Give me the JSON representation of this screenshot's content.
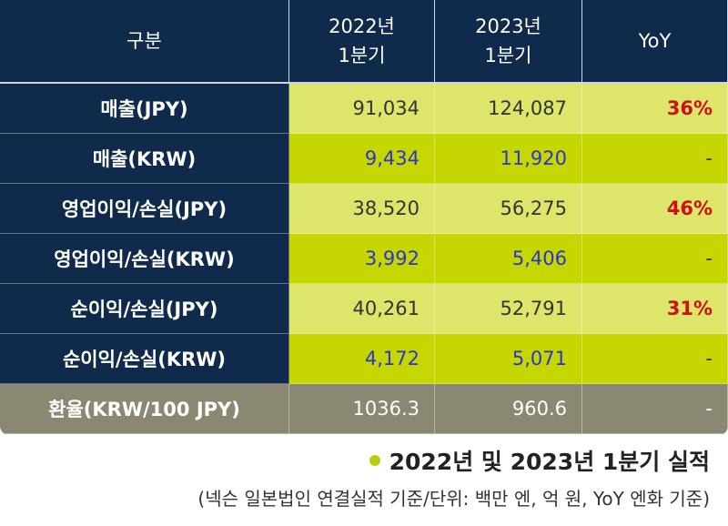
{
  "table": {
    "headers": [
      "구분",
      "2022년\n1분기",
      "2023년\n1분기",
      "YoY"
    ],
    "rows": [
      {
        "label": "매출(JPY)",
        "y2022": "91,034",
        "y2023": "124,087",
        "yoy": "36%"
      },
      {
        "label": "매출(KRW)",
        "y2022": "9,434",
        "y2023": "11,920",
        "yoy": "-"
      },
      {
        "label": "영업이익/손실(JPY)",
        "y2022": "38,520",
        "y2023": "56,275",
        "yoy": "46%"
      },
      {
        "label": "영업이익/손실(KRW)",
        "y2022": "3,992",
        "y2023": "5,406",
        "yoy": "-"
      },
      {
        "label": "순이익/손실(JPY)",
        "y2022": "40,261",
        "y2023": "52,791",
        "yoy": "31%"
      },
      {
        "label": "순이익/손실(KRW)",
        "y2022": "4,172",
        "y2023": "5,071",
        "yoy": "-"
      },
      {
        "label": "환율(KRW/100 JPY)",
        "y2022": "1036.3",
        "y2023": "960.6",
        "yoy": "-"
      }
    ]
  },
  "caption": "2022년 및 2023년 1분기 실적",
  "note": "(넥슨 일본법인 연결실적 기준/단위: 백만 엔, 억 원, YoY 엔화 기준)",
  "colors": {
    "navy": "#0f2a4a",
    "light_green": "#dde66a",
    "dark_green": "#c5d600",
    "grey": "#8a8873",
    "yoy_red": "#cc1111",
    "krw_blue": "#2a35d0"
  }
}
